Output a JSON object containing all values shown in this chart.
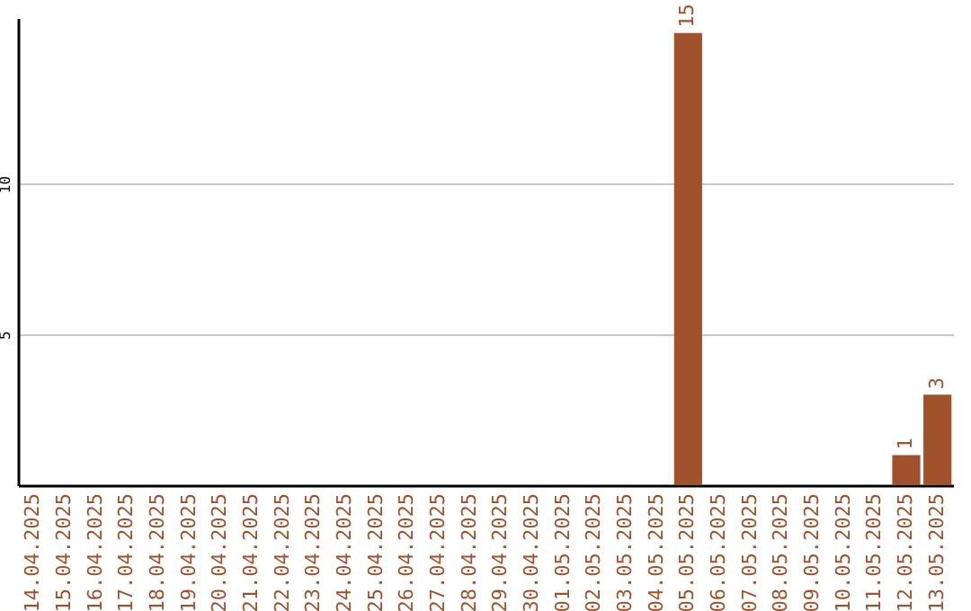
{
  "chart_data": {
    "type": "bar",
    "categories": [
      "14.04.2025",
      "15.04.2025",
      "16.04.2025",
      "17.04.2025",
      "18.04.2025",
      "19.04.2025",
      "20.04.2025",
      "21.04.2025",
      "22.04.2025",
      "23.04.2025",
      "24.04.2025",
      "25.04.2025",
      "26.04.2025",
      "27.04.2025",
      "28.04.2025",
      "29.04.2025",
      "30.04.2025",
      "01.05.2025",
      "02.05.2025",
      "03.05.2025",
      "04.05.2025",
      "05.05.2025",
      "06.05.2025",
      "07.05.2025",
      "08.05.2025",
      "09.05.2025",
      "10.05.2025",
      "11.05.2025",
      "12.05.2025",
      "13.05.2025"
    ],
    "values": [
      0,
      0,
      0,
      0,
      0,
      0,
      0,
      0,
      0,
      0,
      0,
      0,
      0,
      0,
      0,
      0,
      0,
      0,
      0,
      0,
      0,
      15,
      0,
      0,
      0,
      0,
      0,
      0,
      1,
      3
    ],
    "value_labels": [
      null,
      null,
      null,
      null,
      null,
      null,
      null,
      null,
      null,
      null,
      null,
      null,
      null,
      null,
      null,
      null,
      null,
      null,
      null,
      null,
      null,
      "15",
      null,
      null,
      null,
      null,
      null,
      null,
      "1",
      "3"
    ],
    "color": "#a0522d",
    "ylim": [
      0,
      15.5
    ],
    "yticks": [
      5,
      10
    ],
    "grid": "y"
  }
}
